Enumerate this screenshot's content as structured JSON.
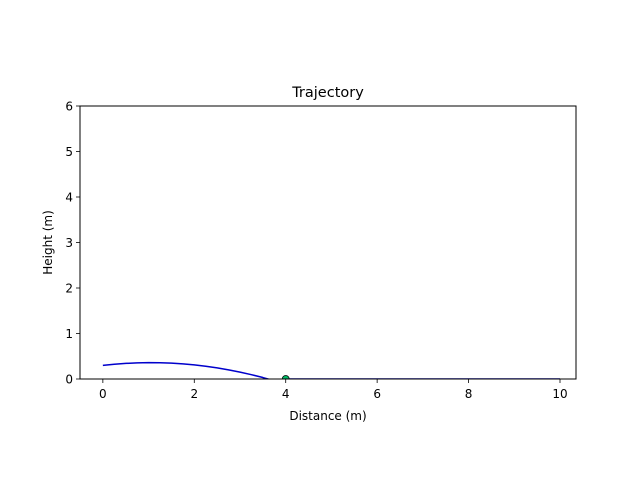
{
  "chart_data": {
    "type": "line",
    "title": "Trajectory",
    "xlabel": "Distance (m)",
    "ylabel": "Height (m)",
    "xlim": [
      -0.5,
      10.35
    ],
    "ylim": [
      0,
      6
    ],
    "xticks": [
      0,
      2,
      4,
      6,
      8,
      10
    ],
    "yticks": [
      0,
      1,
      2,
      3,
      4,
      5,
      6
    ],
    "grid": false,
    "legend": "none",
    "series": [
      {
        "type": "line",
        "color": "#0000cc",
        "x": [
          0,
          0.25,
          0.5,
          0.75,
          1.0,
          1.25,
          1.5,
          1.75,
          2.0,
          2.25,
          2.5,
          2.75,
          3.0,
          3.25,
          3.5,
          3.75,
          4.0
        ],
        "y": [
          0.3,
          0.325,
          0.343,
          0.355,
          0.36,
          0.357,
          0.348,
          0.333,
          0.31,
          0.28,
          0.244,
          0.201,
          0.151,
          0.095,
          0.032,
          -0.038,
          -0.005
        ]
      },
      {
        "type": "line",
        "color": "#0000cc",
        "x": [
          4.0,
          10.0
        ],
        "y": [
          0,
          0
        ]
      },
      {
        "type": "scatter",
        "color": "#00bb66",
        "edge_color": "#000000",
        "x": [
          4.0
        ],
        "y": [
          0
        ]
      }
    ]
  }
}
